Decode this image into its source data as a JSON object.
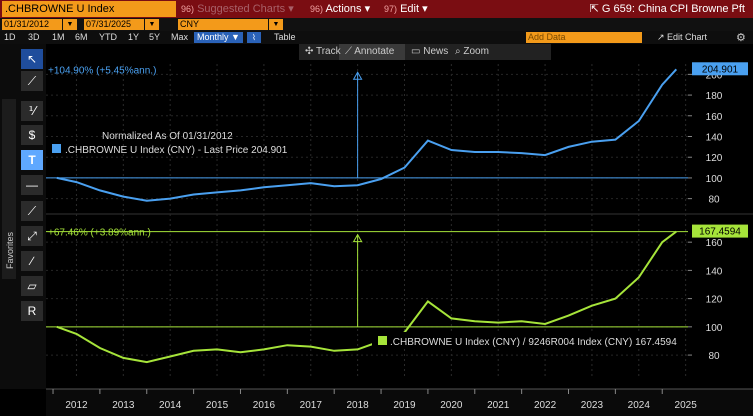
{
  "header": {
    "ticker": ".CHBROWNE U Index",
    "suggested_num": "96)",
    "suggested_label": "Suggested Charts ▾",
    "actions_num": "96)",
    "actions_label": "Actions ▾",
    "edit_num": "97)",
    "edit_label": "Edit ▾",
    "window_title": "G 659: China CPI Browne Pft",
    "start_date": "01/31/2012",
    "end_date": "07/31/2025",
    "currency": "CNY"
  },
  "periods": [
    "1D",
    "3D",
    "1M",
    "6M",
    "YTD",
    "1Y",
    "5Y",
    "Max"
  ],
  "selected_period": "Monthly ▼",
  "table_label": "Table",
  "add_data_placeholder": "Add Data",
  "edit_chart_label": "↗ Edit Chart",
  "floating_toolbar": {
    "track": "Track",
    "annotate": "Annotate",
    "news": "News",
    "zoom": "Zoom"
  },
  "sidebar": {
    "favorites_label": "Favorites",
    "tools": [
      "pointer-tool",
      "line-tool",
      "percent-tool",
      "dollar-tool",
      "text-tool",
      "horizontal-line-tool",
      "trend-tool",
      "segment-tool",
      "fib-tool",
      "rect-tool",
      "r-tool"
    ]
  },
  "colors": {
    "top_line": "#4aa0f0",
    "bottom_line": "#a6e43a",
    "header_bg": "#7a0d12",
    "field": "#f39a1a"
  },
  "chart_data": [
    {
      "type": "line",
      "title": "",
      "legend_note": "Normalized As Of 01/31/2012",
      "legend": ".CHBROWNE U Index (CNY) - Last Price 204.901",
      "last_value_label": "204.901",
      "annotation": "+104.90% (+5.45%ann.)",
      "reference_line": 100,
      "ylim": [
        70,
        210
      ],
      "yticks": [
        80,
        100,
        120,
        140,
        160,
        180,
        200
      ],
      "x": [
        2012.08,
        2012.5,
        2013.0,
        2013.5,
        2014.0,
        2014.5,
        2015.0,
        2015.5,
        2016.0,
        2016.5,
        2017.0,
        2017.5,
        2018.0,
        2018.5,
        2019.0,
        2019.5,
        2020.0,
        2020.5,
        2021.0,
        2021.5,
        2022.0,
        2022.5,
        2023.0,
        2023.5,
        2024.0,
        2024.5,
        2025.0,
        2025.3
      ],
      "values": [
        100,
        96,
        88,
        82,
        78,
        80,
        84,
        86,
        88,
        91,
        93,
        95,
        92,
        93,
        99,
        110,
        136,
        127,
        125,
        125,
        124,
        122,
        130,
        135,
        137,
        155,
        190,
        204.9
      ]
    },
    {
      "type": "line",
      "title": "",
      "legend": ".CHBROWNE U Index (CNY) / 9246R004 Index (CNY) 167.4594",
      "last_value_label": "167.4594",
      "annotation": "+67.46% (+3.89%ann.)",
      "reference_line": 100,
      "ylim": [
        68,
        175
      ],
      "yticks": [
        80,
        100,
        120,
        140,
        160
      ],
      "x": [
        2012.08,
        2012.5,
        2013.0,
        2013.5,
        2014.0,
        2014.5,
        2015.0,
        2015.5,
        2016.0,
        2016.5,
        2017.0,
        2017.5,
        2018.0,
        2018.5,
        2019.0,
        2019.5,
        2020.0,
        2020.5,
        2021.0,
        2021.5,
        2022.0,
        2022.5,
        2023.0,
        2023.5,
        2024.0,
        2024.5,
        2025.0,
        2025.3
      ],
      "values": [
        100,
        95,
        85,
        78,
        75,
        79,
        83,
        84,
        82,
        84,
        87,
        86,
        83,
        84,
        90,
        96,
        118,
        106,
        104,
        103,
        104,
        102,
        108,
        115,
        120,
        135,
        160,
        167.5
      ]
    }
  ],
  "x_axis": {
    "ticks": [
      "2012",
      "2013",
      "2014",
      "2015",
      "2016",
      "2017",
      "2018",
      "2019",
      "2020",
      "2021",
      "2022",
      "2023",
      "2024",
      "2025"
    ]
  }
}
